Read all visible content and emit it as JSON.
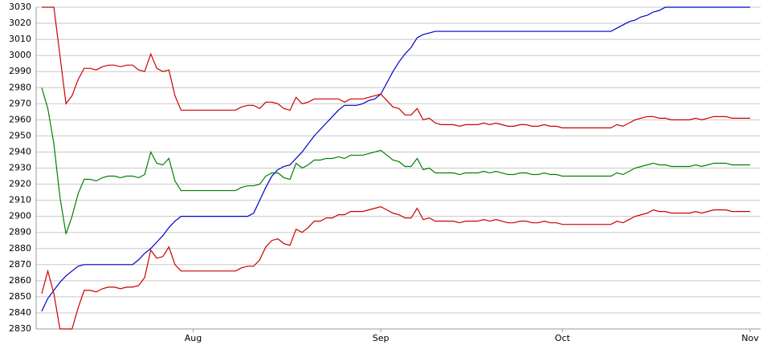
{
  "chart_data": {
    "type": "line",
    "categories": [
      null,
      null,
      null,
      null,
      null,
      null,
      null,
      null,
      null,
      null,
      null,
      null,
      null,
      null,
      null,
      null,
      null,
      null,
      null,
      null,
      null,
      null,
      null,
      null,
      null,
      "Aug",
      null,
      null,
      null,
      null,
      null,
      null,
      null,
      null,
      null,
      null,
      null,
      null,
      null,
      null,
      null,
      null,
      null,
      null,
      null,
      null,
      null,
      null,
      null,
      null,
      null,
      null,
      null,
      null,
      null,
      null,
      "Sep",
      null,
      null,
      null,
      null,
      null,
      null,
      null,
      null,
      null,
      null,
      null,
      null,
      null,
      null,
      null,
      null,
      null,
      null,
      null,
      null,
      null,
      null,
      null,
      null,
      null,
      null,
      null,
      null,
      null,
      "Oct",
      null,
      null,
      null,
      null,
      null,
      null,
      null,
      null,
      null,
      null,
      null,
      null,
      null,
      null,
      null,
      null,
      null,
      null,
      null,
      null,
      null,
      null,
      null,
      null,
      null,
      null,
      null,
      null,
      null,
      null,
      "Nov"
    ],
    "series": [
      {
        "color": "#0000cc",
        "values": [
          2841,
          2849,
          2854,
          2859,
          2863,
          2866,
          2869,
          2870,
          2870,
          2870,
          2870,
          2870,
          2870,
          2870,
          2870,
          2870,
          2873,
          2877,
          2880,
          2884,
          2888,
          2893,
          2897,
          2900,
          2900,
          2900,
          2900,
          2900,
          2900,
          2900,
          2900,
          2900,
          2900,
          2900,
          2900,
          2902,
          2910,
          2918,
          2925,
          2929,
          2931,
          2932,
          2936,
          2940,
          2945,
          2950,
          2954,
          2958,
          2962,
          2966,
          2969,
          2969,
          2969,
          2970,
          2972,
          2973,
          2976,
          2983,
          2990,
          2996,
          3001,
          3005,
          3011,
          3013,
          3014,
          3015,
          3015,
          3015,
          3015,
          3015,
          3015,
          3015,
          3015,
          3015,
          3015,
          3015,
          3015,
          3015,
          3015,
          3015,
          3015,
          3015,
          3015,
          3015,
          3015,
          3015,
          3015,
          3015,
          3015,
          3015,
          3015,
          3015,
          3015,
          3015,
          3015,
          3017,
          3019,
          3021,
          3022,
          3024,
          3025,
          3027,
          3028,
          3030,
          3030,
          3030,
          3030,
          3030,
          3030,
          3030,
          3030,
          3030,
          3030,
          3030,
          3030,
          3030,
          3030,
          3030
        ]
      },
      {
        "color": "#cc0000",
        "values": [
          3030,
          3030,
          3030,
          3000,
          2970,
          2975,
          2985,
          2992,
          2992,
          2991,
          2993,
          2994,
          2994,
          2993,
          2994,
          2994,
          2991,
          2990,
          3001,
          2992,
          2990,
          2991,
          2975,
          2966,
          2966,
          2966,
          2966,
          2966,
          2966,
          2966,
          2966,
          2966,
          2966,
          2968,
          2969,
          2969,
          2967,
          2971,
          2971,
          2970,
          2967,
          2966,
          2974,
          2970,
          2971,
          2973,
          2973,
          2973,
          2973,
          2973,
          2971,
          2973,
          2973,
          2973,
          2974,
          2975,
          2976,
          2972,
          2968,
          2967,
          2963,
          2963,
          2967,
          2960,
          2961,
          2958,
          2957,
          2957,
          2957,
          2956,
          2957,
          2957,
          2957,
          2958,
          2957,
          2958,
          2957,
          2956,
          2956,
          2957,
          2957,
          2956,
          2956,
          2957,
          2956,
          2956,
          2955,
          2955,
          2955,
          2955,
          2955,
          2955,
          2955,
          2955,
          2955,
          2957,
          2956,
          2958,
          2960,
          2961,
          2962,
          2962,
          2961,
          2961,
          2960,
          2960,
          2960,
          2960,
          2961,
          2960,
          2961,
          2962,
          2962,
          2962,
          2961,
          2961,
          2961,
          2961
        ]
      },
      {
        "color": "#008000",
        "values": [
          2980,
          2967,
          2945,
          2912,
          2889,
          2900,
          2914,
          2923,
          2923,
          2922,
          2924,
          2925,
          2925,
          2924,
          2925,
          2925,
          2924,
          2926,
          2940,
          2933,
          2932,
          2936,
          2922,
          2916,
          2916,
          2916,
          2916,
          2916,
          2916,
          2916,
          2916,
          2916,
          2916,
          2918,
          2919,
          2919,
          2920,
          2925,
          2927,
          2927,
          2924,
          2923,
          2933,
          2930,
          2932,
          2935,
          2935,
          2936,
          2936,
          2937,
          2936,
          2938,
          2938,
          2938,
          2939,
          2940,
          2941,
          2938,
          2935,
          2934,
          2931,
          2931,
          2936,
          2929,
          2930,
          2927,
          2927,
          2927,
          2927,
          2926,
          2927,
          2927,
          2927,
          2928,
          2927,
          2928,
          2927,
          2926,
          2926,
          2927,
          2927,
          2926,
          2926,
          2927,
          2926,
          2926,
          2925,
          2925,
          2925,
          2925,
          2925,
          2925,
          2925,
          2925,
          2925,
          2927,
          2926,
          2928,
          2930,
          2931,
          2932,
          2933,
          2932,
          2932,
          2931,
          2931,
          2931,
          2931,
          2932,
          2931,
          2932,
          2933,
          2933,
          2933,
          2932,
          2932,
          2932,
          2932
        ]
      },
      {
        "color": "#cc0000",
        "values": [
          2852,
          2866,
          2852,
          2830,
          2830,
          2830,
          2843,
          2854,
          2854,
          2853,
          2855,
          2856,
          2856,
          2855,
          2856,
          2856,
          2857,
          2862,
          2879,
          2874,
          2875,
          2881,
          2870,
          2866,
          2866,
          2866,
          2866,
          2866,
          2866,
          2866,
          2866,
          2866,
          2866,
          2868,
          2869,
          2869,
          2873,
          2881,
          2885,
          2886,
          2883,
          2882,
          2892,
          2890,
          2893,
          2897,
          2897,
          2899,
          2899,
          2901,
          2901,
          2903,
          2903,
          2903,
          2904,
          2905,
          2906,
          2904,
          2902,
          2901,
          2899,
          2899,
          2905,
          2898,
          2899,
          2897,
          2897,
          2897,
          2897,
          2896,
          2897,
          2897,
          2897,
          2898,
          2897,
          2898,
          2897,
          2896,
          2896,
          2897,
          2897,
          2896,
          2896,
          2897,
          2896,
          2896,
          2895,
          2895,
          2895,
          2895,
          2895,
          2895,
          2895,
          2895,
          2895,
          2897,
          2896,
          2898,
          2900,
          2901,
          2902,
          2904,
          2903,
          2903,
          2902,
          2902,
          2902,
          2902,
          2903,
          2902,
          2903,
          2904,
          2904,
          2904,
          2903,
          2903,
          2903,
          2903
        ]
      }
    ],
    "ylim": [
      2830,
      3030
    ],
    "yticks": [
      2830,
      2840,
      2850,
      2860,
      2870,
      2880,
      2890,
      2900,
      2910,
      2920,
      2930,
      2940,
      2950,
      2960,
      2970,
      2980,
      2990,
      3000,
      3010,
      3020,
      3030
    ],
    "grid": true
  }
}
